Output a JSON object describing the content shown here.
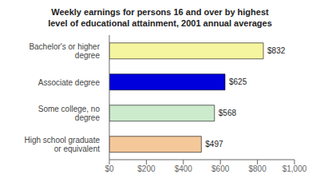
{
  "chart_data": {
    "type": "bar",
    "orientation": "horizontal",
    "title": "Weekly earnings for persons 16 and over by highest\nlevel of educational attainment, 2001 annual averages",
    "categories": [
      "High school graduate\nor equivalent",
      "Some college, no\ndegree",
      "Associate degree",
      "Bachelor's or higher\ndegree"
    ],
    "values": [
      497,
      568,
      625,
      832
    ],
    "value_labels": [
      "$497",
      "$568",
      "$625",
      "$832"
    ],
    "colors": [
      "#f5c89a",
      "#cceacc",
      "#0000dd",
      "#f5f5a0"
    ],
    "xlim": [
      0,
      1000
    ],
    "xticks": [
      {
        "value": 0,
        "label": "$0"
      },
      {
        "value": 200,
        "label": "$200"
      },
      {
        "value": 400,
        "label": "$400"
      },
      {
        "value": 600,
        "label": "$600"
      },
      {
        "value": 800,
        "label": "$800"
      },
      {
        "value": 1000,
        "label": "$1,000"
      }
    ],
    "data_labels": true
  }
}
